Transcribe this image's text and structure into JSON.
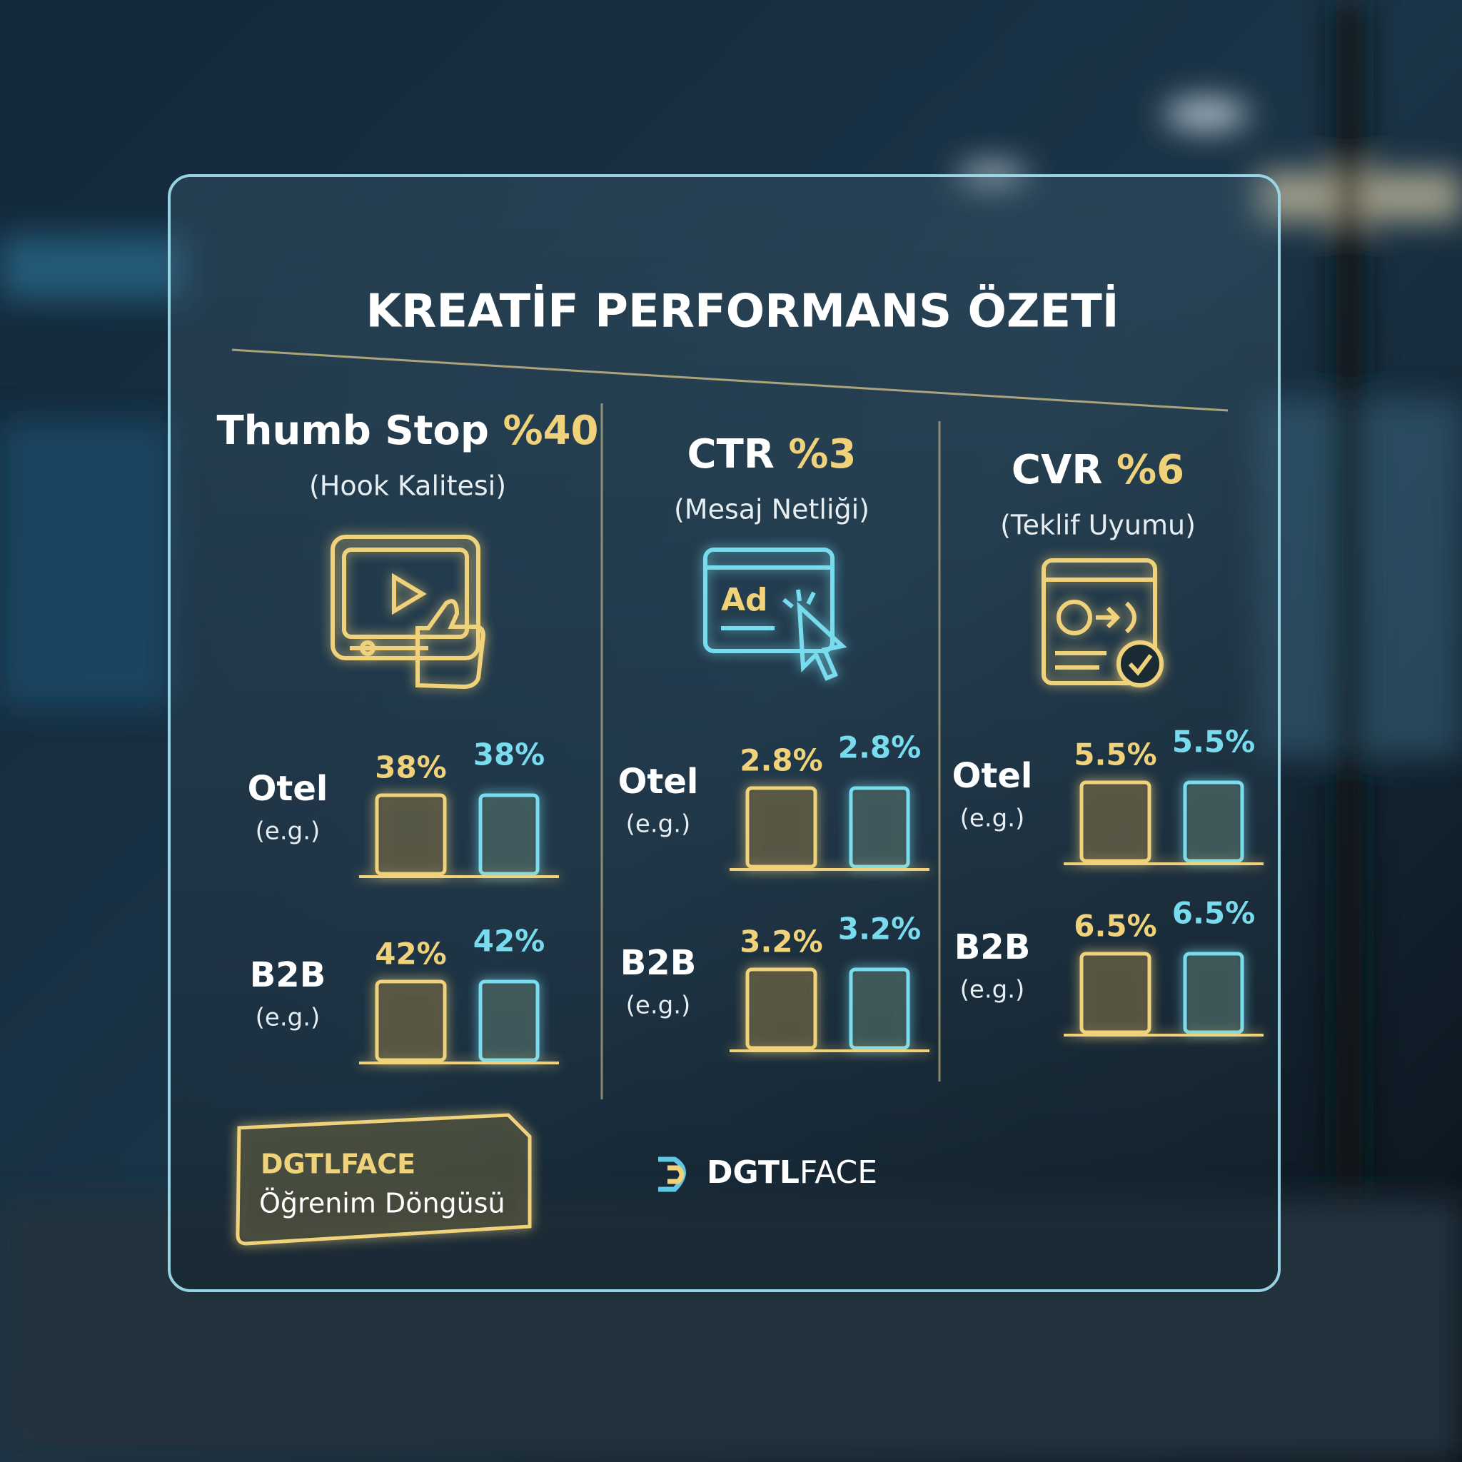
{
  "title": "KREATİF PERFORMANS ÖZETİ",
  "columns": [
    {
      "heading": "Thumb Stop",
      "metric": "%40",
      "subtitle": "(Hook Kalitesi)"
    },
    {
      "heading": "CTR",
      "metric": "%3",
      "subtitle": "(Mesaj Netliği)",
      "icon_text": "Ad"
    },
    {
      "heading": "CVR",
      "metric": "%6",
      "subtitle": "(Teklif Uyumu)"
    }
  ],
  "chart_data": [
    {
      "type": "bar",
      "label": "Otel",
      "note": "(e.g.)",
      "values": [
        38,
        38
      ],
      "value_labels": [
        "38%",
        "38%"
      ],
      "colors": [
        "#f0d27a",
        "#78dcee"
      ]
    },
    {
      "type": "bar",
      "label": "B2B",
      "note": "(e.g.)",
      "values": [
        42,
        42
      ],
      "value_labels": [
        "42%",
        "42%"
      ],
      "colors": [
        "#f0d27a",
        "#78dcee"
      ]
    },
    {
      "type": "bar",
      "label": "Otel",
      "note": "(e.g.)",
      "values": [
        2.8,
        2.8
      ],
      "value_labels": [
        "2.8%",
        "2.8%"
      ],
      "colors": [
        "#f0d27a",
        "#78dcee"
      ]
    },
    {
      "type": "bar",
      "label": "B2B",
      "note": "(e.g.)",
      "values": [
        3.2,
        3.2
      ],
      "value_labels": [
        "3.2%",
        "3.2%"
      ],
      "colors": [
        "#f0d27a",
        "#78dcee"
      ]
    },
    {
      "type": "bar",
      "label": "Otel",
      "note": "(e.g.)",
      "values": [
        5.5,
        5.5
      ],
      "value_labels": [
        "5.5%",
        "5.5%"
      ],
      "colors": [
        "#f0d27a",
        "#78dcee"
      ]
    },
    {
      "type": "bar",
      "label": "B2B",
      "note": "(e.g.)",
      "values": [
        6.5,
        6.5
      ],
      "value_labels": [
        "6.5%",
        "6.5%"
      ],
      "colors": [
        "#f0d27a",
        "#78dcee"
      ]
    }
  ],
  "footer": {
    "badge_title": "DGTLFACE",
    "badge_subtitle": "Öğrenim Döngüsü",
    "brand_bold": "DGTL",
    "brand_light": "FACE"
  }
}
